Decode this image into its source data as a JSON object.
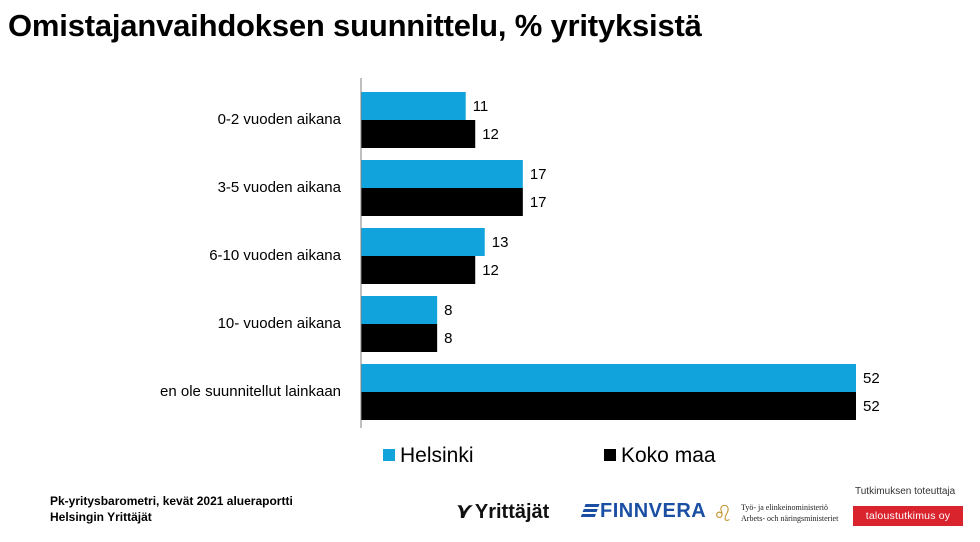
{
  "title": "Omistajanvaihdoksen suunnittelu, % yrityksistä",
  "chart_data": {
    "type": "bar",
    "orientation": "horizontal",
    "categories": [
      "0-2 vuoden aikana",
      "3-5 vuoden aikana",
      "6-10 vuoden aikana",
      "10- vuoden aikana",
      "en ole suunnitellut lainkaan"
    ],
    "series": [
      {
        "name": "Helsinki",
        "values": [
          11,
          17,
          13,
          8,
          52
        ],
        "color": "#10a3dc"
      },
      {
        "name": "Koko maa",
        "values": [
          12,
          17,
          12,
          8,
          52
        ],
        "color": "#000000"
      }
    ],
    "xlim": [
      0,
      52
    ],
    "grid": false,
    "data_labels": true,
    "legend_position": "bottom"
  },
  "footer": {
    "line1": "Pk-yritysbarometri, kevät  2021  alueraportti",
    "line2": "Helsingin Yrittäjät"
  },
  "logos": {
    "yrittajat": "Yrittäjät",
    "finnvera": "FINNVERA",
    "tem_line1": "Työ- ja elinkeinoministeriö",
    "tem_line2": "Arbets- och näringsministeriet",
    "tt_caption": "Tutkimuksen toteuttaja",
    "tt_name": "taloustutkimus oy"
  }
}
